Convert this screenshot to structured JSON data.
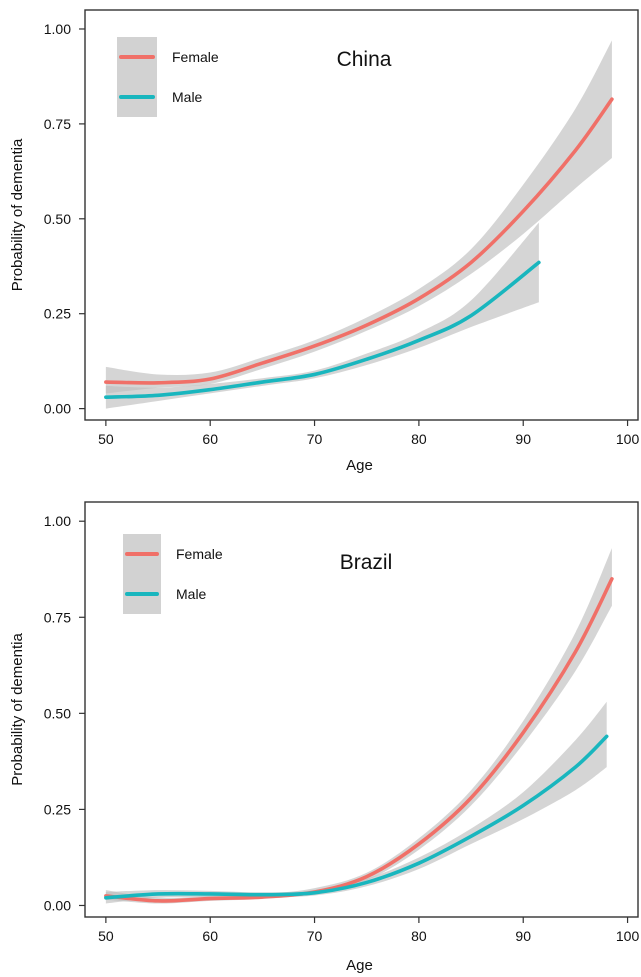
{
  "chart_data": [
    {
      "type": "line",
      "title": "China",
      "xlabel": "Age",
      "ylabel": "Probability of dementia",
      "xlim": [
        48,
        101
      ],
      "ylim": [
        -0.03,
        1.05
      ],
      "xticks": [
        50,
        60,
        70,
        80,
        90,
        100
      ],
      "yticks": [
        "0.00",
        "0.25",
        "0.50",
        "0.75",
        "1.00"
      ],
      "grid": false,
      "legend_position": "top-left",
      "series": [
        {
          "name": "Female",
          "color": "#F07068",
          "x": [
            50,
            55,
            60,
            65,
            70,
            75,
            80,
            85,
            90,
            95,
            98.5
          ],
          "y": [
            0.07,
            0.068,
            0.078,
            0.12,
            0.165,
            0.22,
            0.29,
            0.385,
            0.52,
            0.68,
            0.815
          ],
          "ci_low": [
            0.04,
            0.055,
            0.065,
            0.105,
            0.15,
            0.205,
            0.27,
            0.355,
            0.46,
            0.58,
            0.66
          ],
          "ci_high": [
            0.11,
            0.09,
            0.095,
            0.135,
            0.18,
            0.24,
            0.315,
            0.42,
            0.59,
            0.79,
            0.97
          ]
        },
        {
          "name": "Male",
          "color": "#19B6BE",
          "x": [
            50,
            55,
            60,
            65,
            70,
            75,
            80,
            85,
            91.5
          ],
          "y": [
            0.03,
            0.035,
            0.05,
            0.07,
            0.09,
            0.13,
            0.18,
            0.245,
            0.385
          ],
          "ci_low": [
            0.0,
            0.02,
            0.04,
            0.06,
            0.08,
            0.115,
            0.16,
            0.215,
            0.28
          ],
          "ci_high": [
            0.06,
            0.055,
            0.065,
            0.08,
            0.1,
            0.145,
            0.2,
            0.285,
            0.49
          ]
        }
      ]
    },
    {
      "type": "line",
      "title": "Brazil",
      "xlabel": "Age",
      "ylabel": "Probability of dementia",
      "xlim": [
        48,
        101
      ],
      "ylim": [
        -0.03,
        1.05
      ],
      "xticks": [
        50,
        60,
        70,
        80,
        90,
        100
      ],
      "yticks": [
        "0.00",
        "0.25",
        "0.50",
        "0.75",
        "1.00"
      ],
      "grid": false,
      "legend_position": "top-left",
      "series": [
        {
          "name": "Female",
          "color": "#F07068",
          "x": [
            50,
            55,
            60,
            65,
            70,
            75,
            80,
            85,
            90,
            95,
            98.5
          ],
          "y": [
            0.025,
            0.012,
            0.018,
            0.022,
            0.035,
            0.075,
            0.16,
            0.28,
            0.45,
            0.66,
            0.85
          ],
          "ci_low": [
            0.015,
            0.005,
            0.012,
            0.017,
            0.03,
            0.065,
            0.145,
            0.26,
            0.42,
            0.61,
            0.78
          ],
          "ci_high": [
            0.04,
            0.02,
            0.025,
            0.03,
            0.045,
            0.085,
            0.175,
            0.3,
            0.48,
            0.71,
            0.93
          ]
        },
        {
          "name": "Male",
          "color": "#19B6BE",
          "x": [
            50,
            55,
            60,
            65,
            70,
            75,
            80,
            85,
            90,
            95,
            98
          ],
          "y": [
            0.02,
            0.03,
            0.03,
            0.028,
            0.033,
            0.06,
            0.11,
            0.18,
            0.26,
            0.36,
            0.44
          ],
          "ci_low": [
            0.005,
            0.02,
            0.022,
            0.022,
            0.026,
            0.05,
            0.095,
            0.16,
            0.225,
            0.3,
            0.36
          ],
          "ci_high": [
            0.035,
            0.04,
            0.038,
            0.034,
            0.04,
            0.07,
            0.125,
            0.2,
            0.295,
            0.43,
            0.53
          ]
        }
      ]
    }
  ]
}
